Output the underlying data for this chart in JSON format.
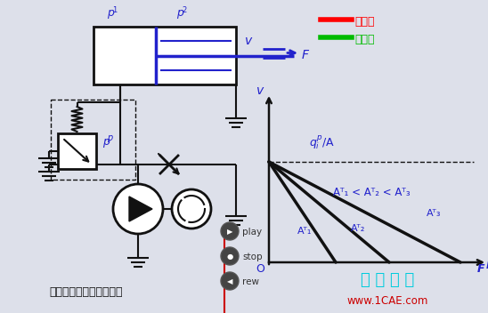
{
  "bg_color": "#dde0ea",
  "title_text": "节流阀旁路节流调速回路",
  "watermark": "仿 真 在 线",
  "watermark_url": "www.1CAE.com",
  "legend_items": [
    {
      "label": "进油路",
      "color": "#ff0000"
    },
    {
      "label": "回油路",
      "color": "#00bb00"
    }
  ],
  "blue_color": "#2222cc",
  "black_color": "#111111",
  "red_color": "#cc0000"
}
